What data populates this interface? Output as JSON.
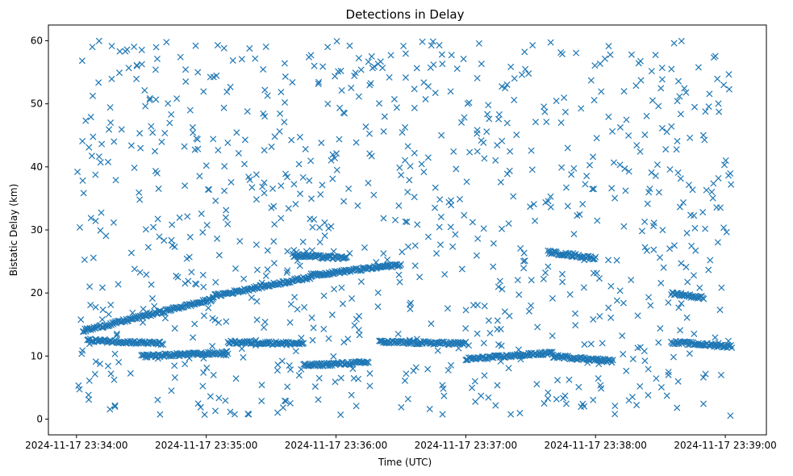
{
  "chart_data": {
    "type": "scatter",
    "title": "Detections in Delay",
    "xlabel": "Time (UTC)",
    "ylabel": "Bistatic Delay (km)",
    "marker": "x",
    "color": "#1f77b4",
    "xlim": [
      "2024-11-17 23:33:47",
      "2024-11-17 23:39:19"
    ],
    "ylim": [
      -2.5,
      62.5
    ],
    "xticks": [
      "2024-11-17 23:34:00",
      "2024-11-17 23:35:00",
      "2024-11-17 23:36:00",
      "2024-11-17 23:37:00",
      "2024-11-17 23:38:00",
      "2024-11-17 23:39:00"
    ],
    "yticks": [
      0,
      10,
      20,
      30,
      40,
      50,
      60
    ],
    "grid": false,
    "tracks": [
      {
        "start": "2024-11-17 23:34:03",
        "end": "2024-11-17 23:35:03",
        "delay_start": 14.0,
        "delay_end": 19.0
      },
      {
        "start": "2024-11-17 23:35:03",
        "end": "2024-11-17 23:35:48",
        "delay_start": 19.5,
        "delay_end": 22.5
      },
      {
        "start": "2024-11-17 23:35:48",
        "end": "2024-11-17 23:36:30",
        "delay_start": 22.8,
        "delay_end": 24.5
      },
      {
        "start": "2024-11-17 23:34:05",
        "end": "2024-11-17 23:34:40",
        "delay_start": 12.5,
        "delay_end": 12.0
      },
      {
        "start": "2024-11-17 23:36:20",
        "end": "2024-11-17 23:37:00",
        "delay_start": 12.2,
        "delay_end": 12.0
      },
      {
        "start": "2024-11-17 23:37:00",
        "end": "2024-11-17 23:37:40",
        "delay_start": 9.5,
        "delay_end": 10.5
      },
      {
        "start": "2024-11-17 23:37:40",
        "end": "2024-11-17 23:38:08",
        "delay_start": 10.0,
        "delay_end": 9.2
      },
      {
        "start": "2024-11-17 23:37:38",
        "end": "2024-11-17 23:38:00",
        "delay_start": 26.5,
        "delay_end": 25.5
      },
      {
        "start": "2024-11-17 23:38:35",
        "end": "2024-11-17 23:39:03",
        "delay_start": 12.2,
        "delay_end": 11.5
      },
      {
        "start": "2024-11-17 23:38:35",
        "end": "2024-11-17 23:38:50",
        "delay_start": 20.0,
        "delay_end": 19.2
      },
      {
        "start": "2024-11-17 23:35:40",
        "end": "2024-11-17 23:36:05",
        "delay_start": 26.0,
        "delay_end": 25.5
      },
      {
        "start": "2024-11-17 23:34:30",
        "end": "2024-11-17 23:35:10",
        "delay_start": 10.0,
        "delay_end": 10.5
      },
      {
        "start": "2024-11-17 23:35:10",
        "end": "2024-11-17 23:35:45",
        "delay_start": 12.2,
        "delay_end": 12.0
      },
      {
        "start": "2024-11-17 23:35:45",
        "end": "2024-11-17 23:36:15",
        "delay_start": 8.5,
        "delay_end": 9.0
      }
    ],
    "background_clutter": {
      "count": 900,
      "xrange": [
        "2024-11-17 23:34:00",
        "2024-11-17 23:39:03"
      ],
      "yrange": [
        0.5,
        60
      ]
    }
  }
}
